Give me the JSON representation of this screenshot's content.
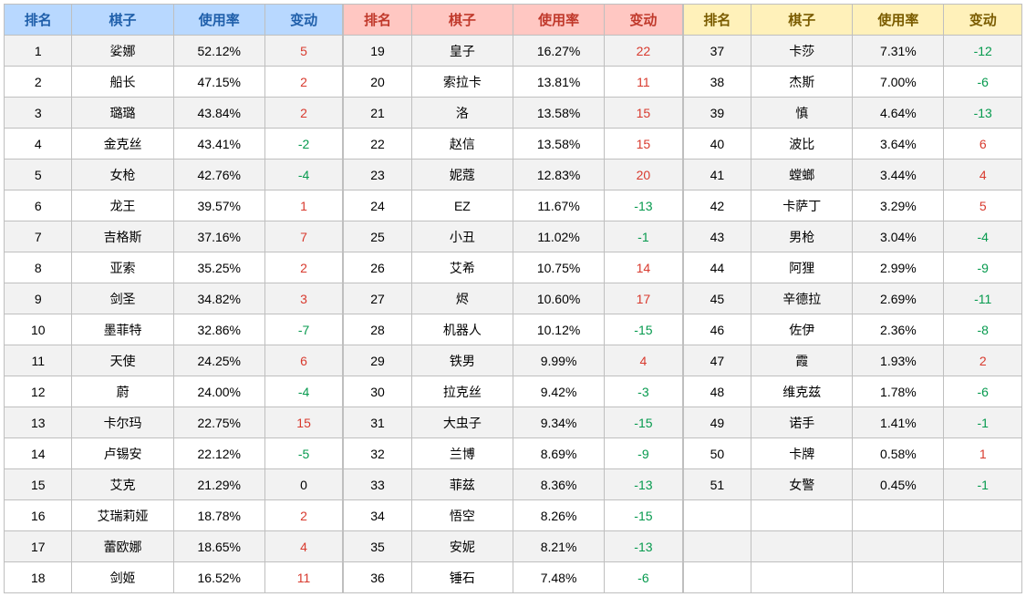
{
  "columns": [
    "排名",
    "棋子",
    "使用率",
    "变动"
  ],
  "header_colors": {
    "section1": {
      "bg": "#b8d8ff",
      "text": "#1f5faa"
    },
    "section2": {
      "bg": "#ffc7c2",
      "text": "#c0392b"
    },
    "section3": {
      "bg": "#fff1ba",
      "text": "#7a5c00"
    }
  },
  "row_colors": {
    "even_bg": "#f2f2f2",
    "odd_bg": "#ffffff",
    "border": "#bfbfbf",
    "text": "#000000"
  },
  "change_colors": {
    "positive": "#d83a2e",
    "negative": "#069a4e",
    "zero": "#000000"
  },
  "rows_per_section": 18,
  "sections": [
    {
      "rows": [
        {
          "rank": 1,
          "name": "娑娜",
          "rate": "52.12%",
          "change": 5
        },
        {
          "rank": 2,
          "name": "船长",
          "rate": "47.15%",
          "change": 2
        },
        {
          "rank": 3,
          "name": "璐璐",
          "rate": "43.84%",
          "change": 2
        },
        {
          "rank": 4,
          "name": "金克丝",
          "rate": "43.41%",
          "change": -2
        },
        {
          "rank": 5,
          "name": "女枪",
          "rate": "42.76%",
          "change": -4
        },
        {
          "rank": 6,
          "name": "龙王",
          "rate": "39.57%",
          "change": 1
        },
        {
          "rank": 7,
          "name": "吉格斯",
          "rate": "37.16%",
          "change": 7
        },
        {
          "rank": 8,
          "name": "亚索",
          "rate": "35.25%",
          "change": 2
        },
        {
          "rank": 9,
          "name": "剑圣",
          "rate": "34.82%",
          "change": 3
        },
        {
          "rank": 10,
          "name": "墨菲特",
          "rate": "32.86%",
          "change": -7
        },
        {
          "rank": 11,
          "name": "天使",
          "rate": "24.25%",
          "change": 6
        },
        {
          "rank": 12,
          "name": "蔚",
          "rate": "24.00%",
          "change": -4
        },
        {
          "rank": 13,
          "name": "卡尔玛",
          "rate": "22.75%",
          "change": 15
        },
        {
          "rank": 14,
          "name": "卢锡安",
          "rate": "22.12%",
          "change": -5
        },
        {
          "rank": 15,
          "name": "艾克",
          "rate": "21.29%",
          "change": 0
        },
        {
          "rank": 16,
          "name": "艾瑞莉娅",
          "rate": "18.78%",
          "change": 2
        },
        {
          "rank": 17,
          "name": "蕾欧娜",
          "rate": "18.65%",
          "change": 4
        },
        {
          "rank": 18,
          "name": "剑姬",
          "rate": "16.52%",
          "change": 11
        }
      ]
    },
    {
      "rows": [
        {
          "rank": 19,
          "name": "皇子",
          "rate": "16.27%",
          "change": 22
        },
        {
          "rank": 20,
          "name": "索拉卡",
          "rate": "13.81%",
          "change": 11
        },
        {
          "rank": 21,
          "name": "洛",
          "rate": "13.58%",
          "change": 15
        },
        {
          "rank": 22,
          "name": "赵信",
          "rate": "13.58%",
          "change": 15
        },
        {
          "rank": 23,
          "name": "妮蔻",
          "rate": "12.83%",
          "change": 20
        },
        {
          "rank": 24,
          "name": "EZ",
          "rate": "11.67%",
          "change": -13
        },
        {
          "rank": 25,
          "name": "小丑",
          "rate": "11.02%",
          "change": -1
        },
        {
          "rank": 26,
          "name": "艾希",
          "rate": "10.75%",
          "change": 14
        },
        {
          "rank": 27,
          "name": "烬",
          "rate": "10.60%",
          "change": 17
        },
        {
          "rank": 28,
          "name": "机器人",
          "rate": "10.12%",
          "change": -15
        },
        {
          "rank": 29,
          "name": "铁男",
          "rate": "9.99%",
          "change": 4
        },
        {
          "rank": 30,
          "name": "拉克丝",
          "rate": "9.42%",
          "change": -3
        },
        {
          "rank": 31,
          "name": "大虫子",
          "rate": "9.34%",
          "change": -15
        },
        {
          "rank": 32,
          "name": "兰博",
          "rate": "8.69%",
          "change": -9
        },
        {
          "rank": 33,
          "name": "菲兹",
          "rate": "8.36%",
          "change": -13
        },
        {
          "rank": 34,
          "name": "悟空",
          "rate": "8.26%",
          "change": -15
        },
        {
          "rank": 35,
          "name": "安妮",
          "rate": "8.21%",
          "change": -13
        },
        {
          "rank": 36,
          "name": "锤石",
          "rate": "7.48%",
          "change": -6
        }
      ]
    },
    {
      "rows": [
        {
          "rank": 37,
          "name": "卡莎",
          "rate": "7.31%",
          "change": -12
        },
        {
          "rank": 38,
          "name": "杰斯",
          "rate": "7.00%",
          "change": -6
        },
        {
          "rank": 39,
          "name": "慎",
          "rate": "4.64%",
          "change": -13
        },
        {
          "rank": 40,
          "name": "波比",
          "rate": "3.64%",
          "change": 6
        },
        {
          "rank": 41,
          "name": "螳螂",
          "rate": "3.44%",
          "change": 4
        },
        {
          "rank": 42,
          "name": "卡萨丁",
          "rate": "3.29%",
          "change": 5
        },
        {
          "rank": 43,
          "name": "男枪",
          "rate": "3.04%",
          "change": -4
        },
        {
          "rank": 44,
          "name": "阿狸",
          "rate": "2.99%",
          "change": -9
        },
        {
          "rank": 45,
          "name": "辛德拉",
          "rate": "2.69%",
          "change": -11
        },
        {
          "rank": 46,
          "name": "佐伊",
          "rate": "2.36%",
          "change": -8
        },
        {
          "rank": 47,
          "name": "霞",
          "rate": "1.93%",
          "change": 2
        },
        {
          "rank": 48,
          "name": "维克兹",
          "rate": "1.78%",
          "change": -6
        },
        {
          "rank": 49,
          "name": "诺手",
          "rate": "1.41%",
          "change": -1
        },
        {
          "rank": 50,
          "name": "卡牌",
          "rate": "0.58%",
          "change": 1
        },
        {
          "rank": 51,
          "name": "女警",
          "rate": "0.45%",
          "change": -1
        }
      ]
    }
  ]
}
